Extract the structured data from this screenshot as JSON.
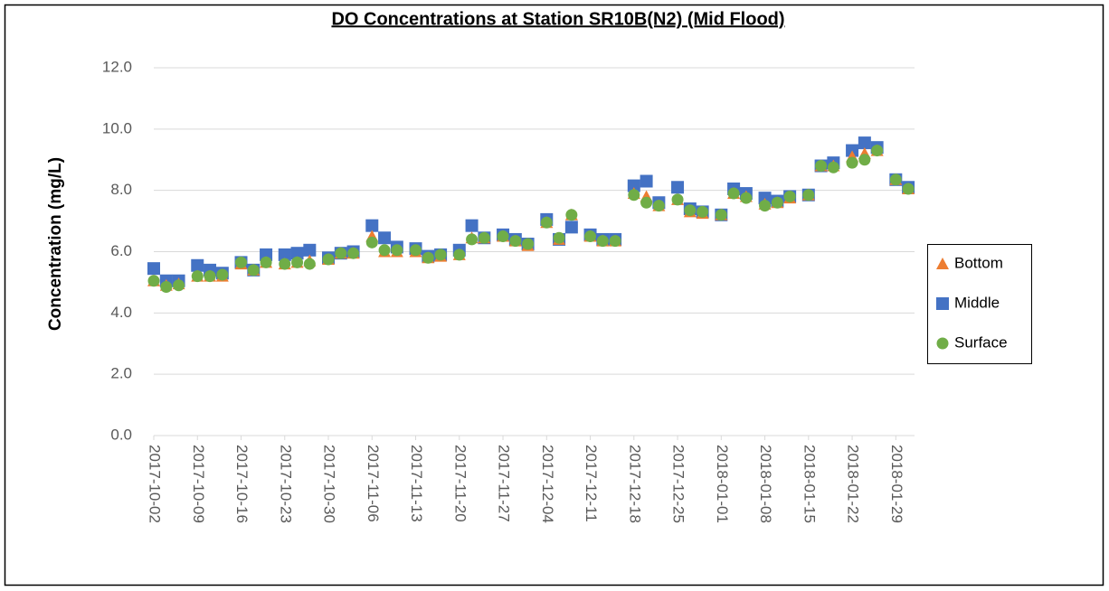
{
  "chart_data": {
    "type": "scatter",
    "title": "DO Concentrations at Station SR10B(N2) (Mid Flood)",
    "y_label": "Concentration (mg/L)",
    "x": [
      "2017-10-02",
      "2017-10-04",
      "2017-10-06",
      "2017-10-09",
      "2017-10-11",
      "2017-10-13",
      "2017-10-16",
      "2017-10-18",
      "2017-10-20",
      "2017-10-23",
      "2017-10-25",
      "2017-10-27",
      "2017-10-30",
      "2017-11-01",
      "2017-11-03",
      "2017-11-06",
      "2017-11-08",
      "2017-11-10",
      "2017-11-13",
      "2017-11-15",
      "2017-11-17",
      "2017-11-20",
      "2017-11-22",
      "2017-11-24",
      "2017-11-27",
      "2017-11-29",
      "2017-12-01",
      "2017-12-04",
      "2017-12-06",
      "2017-12-08",
      "2017-12-11",
      "2017-12-13",
      "2017-12-15",
      "2017-12-18",
      "2017-12-20",
      "2017-12-22",
      "2017-12-25",
      "2017-12-27",
      "2017-12-29",
      "2018-01-01",
      "2018-01-03",
      "2018-01-05",
      "2018-01-08",
      "2018-01-10",
      "2018-01-12",
      "2018-01-15",
      "2018-01-17",
      "2018-01-19",
      "2018-01-22",
      "2018-01-24",
      "2018-01-26",
      "2018-01-29",
      "2018-01-31"
    ],
    "series": [
      {
        "name": "Bottom",
        "color": "#ed7d31",
        "marker": "triangle",
        "values": [
          5.05,
          4.9,
          4.95,
          5.2,
          5.2,
          5.2,
          5.6,
          5.4,
          5.65,
          5.6,
          5.65,
          5.7,
          5.75,
          5.95,
          5.95,
          6.5,
          6.0,
          6.0,
          6.0,
          5.8,
          5.85,
          5.9,
          6.45,
          6.45,
          6.5,
          6.35,
          6.2,
          6.95,
          6.4,
          7.2,
          6.5,
          6.35,
          6.35,
          7.9,
          7.8,
          7.5,
          7.7,
          7.3,
          7.25,
          7.2,
          7.9,
          7.8,
          7.55,
          7.6,
          7.75,
          7.85,
          8.8,
          8.8,
          9.1,
          9.2,
          9.3,
          8.35,
          8.05
        ]
      },
      {
        "name": "Middle",
        "color": "#4472c4",
        "marker": "square",
        "values": [
          5.45,
          5.05,
          5.05,
          5.55,
          5.4,
          5.3,
          5.65,
          5.4,
          5.9,
          5.9,
          5.95,
          6.05,
          5.8,
          5.95,
          6.0,
          6.85,
          6.45,
          6.15,
          6.1,
          5.85,
          5.9,
          6.05,
          6.85,
          6.45,
          6.55,
          6.4,
          6.25,
          7.05,
          6.4,
          6.8,
          6.55,
          6.4,
          6.4,
          8.15,
          8.3,
          7.6,
          8.1,
          7.4,
          7.3,
          7.2,
          8.05,
          7.9,
          7.75,
          7.65,
          7.8,
          7.85,
          8.8,
          8.9,
          9.3,
          9.55,
          9.4,
          8.35,
          8.1
        ]
      },
      {
        "name": "Surface",
        "color": "#70ad47",
        "marker": "circle",
        "values": [
          5.05,
          4.85,
          4.9,
          5.2,
          5.2,
          5.25,
          5.65,
          5.4,
          5.65,
          5.6,
          5.65,
          5.6,
          5.75,
          5.95,
          5.95,
          6.3,
          6.05,
          6.05,
          6.05,
          5.8,
          5.9,
          5.9,
          6.4,
          6.45,
          6.5,
          6.35,
          6.25,
          6.95,
          6.45,
          7.2,
          6.5,
          6.35,
          6.35,
          7.85,
          7.6,
          7.5,
          7.7,
          7.35,
          7.3,
          7.2,
          7.9,
          7.75,
          7.5,
          7.6,
          7.8,
          7.85,
          8.8,
          8.75,
          8.9,
          9.0,
          9.3,
          8.35,
          8.05
        ]
      }
    ],
    "draw_order": [
      "Middle",
      "Bottom",
      "Surface"
    ],
    "xlim": [
      "2017-10-02",
      "2018-02-01"
    ],
    "xticks": [
      "2017-10-02",
      "2017-10-09",
      "2017-10-16",
      "2017-10-23",
      "2017-10-30",
      "2017-11-06",
      "2017-11-13",
      "2017-11-20",
      "2017-11-27",
      "2017-12-04",
      "2017-12-11",
      "2017-12-18",
      "2017-12-25",
      "2018-01-01",
      "2018-01-08",
      "2018-01-15",
      "2018-01-22",
      "2018-01-29"
    ],
    "ylim": [
      0,
      12
    ],
    "yticks": [
      {
        "value": 0,
        "label": "0.0"
      },
      {
        "value": 2,
        "label": "2.0"
      },
      {
        "value": 4,
        "label": "4.0"
      },
      {
        "value": 6,
        "label": "6.0"
      },
      {
        "value": 8,
        "label": "8.0"
      },
      {
        "value": 10,
        "label": "10.0"
      },
      {
        "value": 12,
        "label": "12.0"
      }
    ],
    "grid": true,
    "legend": "right"
  }
}
